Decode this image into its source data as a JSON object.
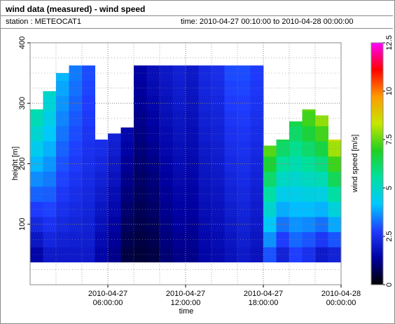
{
  "header": {
    "title": "wind data (measured) - wind speed",
    "station": "station : METEOCAT1",
    "time_range": "time: 2010-04-27 00:10:00 to 2010-04-28 00:00:00"
  },
  "colors": {
    "frame": "#8a8a8a",
    "grid": "#808080",
    "colormap_stops": [
      "#000000",
      "#0000a0",
      "#1f3cff",
      "#00c8ff",
      "#00e0a0",
      "#20d020",
      "#c8e600",
      "#ff9a00",
      "#ff0000",
      "#ff00ff"
    ]
  },
  "chart_data": {
    "type": "heatmap",
    "title": "wind data (measured) - wind speed",
    "xlabel": "time",
    "ylabel": "height [m]",
    "colorbar_label": "wind speed [m/s]",
    "x_range": [
      "2010-04-27 00:00:00",
      "2010-04-28 00:00:00"
    ],
    "xlim_hours": [
      0,
      24
    ],
    "ylim": [
      0,
      400
    ],
    "colorbar_range": [
      0,
      12.5
    ],
    "x_ticks": [
      {
        "hour": 6,
        "label1": "2010-04-27",
        "label2": "06:00:00"
      },
      {
        "hour": 12,
        "label1": "2010-04-27",
        "label2": "12:00:00"
      },
      {
        "hour": 18,
        "label1": "2010-04-27",
        "label2": "18:00:00"
      },
      {
        "hour": 24,
        "label1": "2010-04-28",
        "label2": "00:00:00"
      }
    ],
    "y_ticks": [
      100,
      200,
      300,
      400
    ],
    "y_tick_labels": [
      "100",
      "200",
      "300",
      "400"
    ],
    "colorbar_ticks": [
      0,
      2.5,
      5,
      7.5,
      10,
      12.5
    ],
    "colorbar_tick_labels": [
      "0",
      "2.5",
      "5",
      "7.5",
      "10",
      "12.5"
    ],
    "grid": true,
    "height_levels": [
      50,
      75,
      100,
      125,
      150,
      175,
      200,
      225,
      250,
      275,
      300,
      325,
      350
    ],
    "time_hours": [
      0.5,
      1.5,
      2.5,
      3.5,
      4.5,
      5.5,
      6.5,
      7.5,
      8.5,
      9.5,
      10.5,
      11.5,
      12.5,
      13.5,
      14.5,
      15.5,
      16.5,
      17.5,
      18.5,
      19.5,
      20.5,
      21.5,
      22.5,
      23.5
    ],
    "profile_top_m": [
      290,
      320,
      350,
      370,
      370,
      240,
      250,
      260,
      370,
      370,
      370,
      370,
      370,
      370,
      370,
      370,
      370,
      370,
      230,
      240,
      270,
      290,
      280,
      240
    ],
    "speed_lower_ms": [
      1.5,
      2.0,
      2.0,
      2.0,
      2.0,
      1.5,
      1.2,
      0.6,
      0.5,
      0.6,
      1.0,
      1.2,
      1.2,
      1.5,
      1.6,
      1.8,
      2.0,
      1.8,
      3.0,
      2.2,
      2.8,
      2.5,
      2.0,
      2.2
    ],
    "speed_upper_ms": [
      5.5,
      5.0,
      4.0,
      3.5,
      3.0,
      2.5,
      2.2,
      1.6,
      1.5,
      1.8,
      2.0,
      2.2,
      2.0,
      2.4,
      2.5,
      3.0,
      3.0,
      2.8,
      7.5,
      6.5,
      6.5,
      7.5,
      8.0,
      8.5
    ]
  }
}
